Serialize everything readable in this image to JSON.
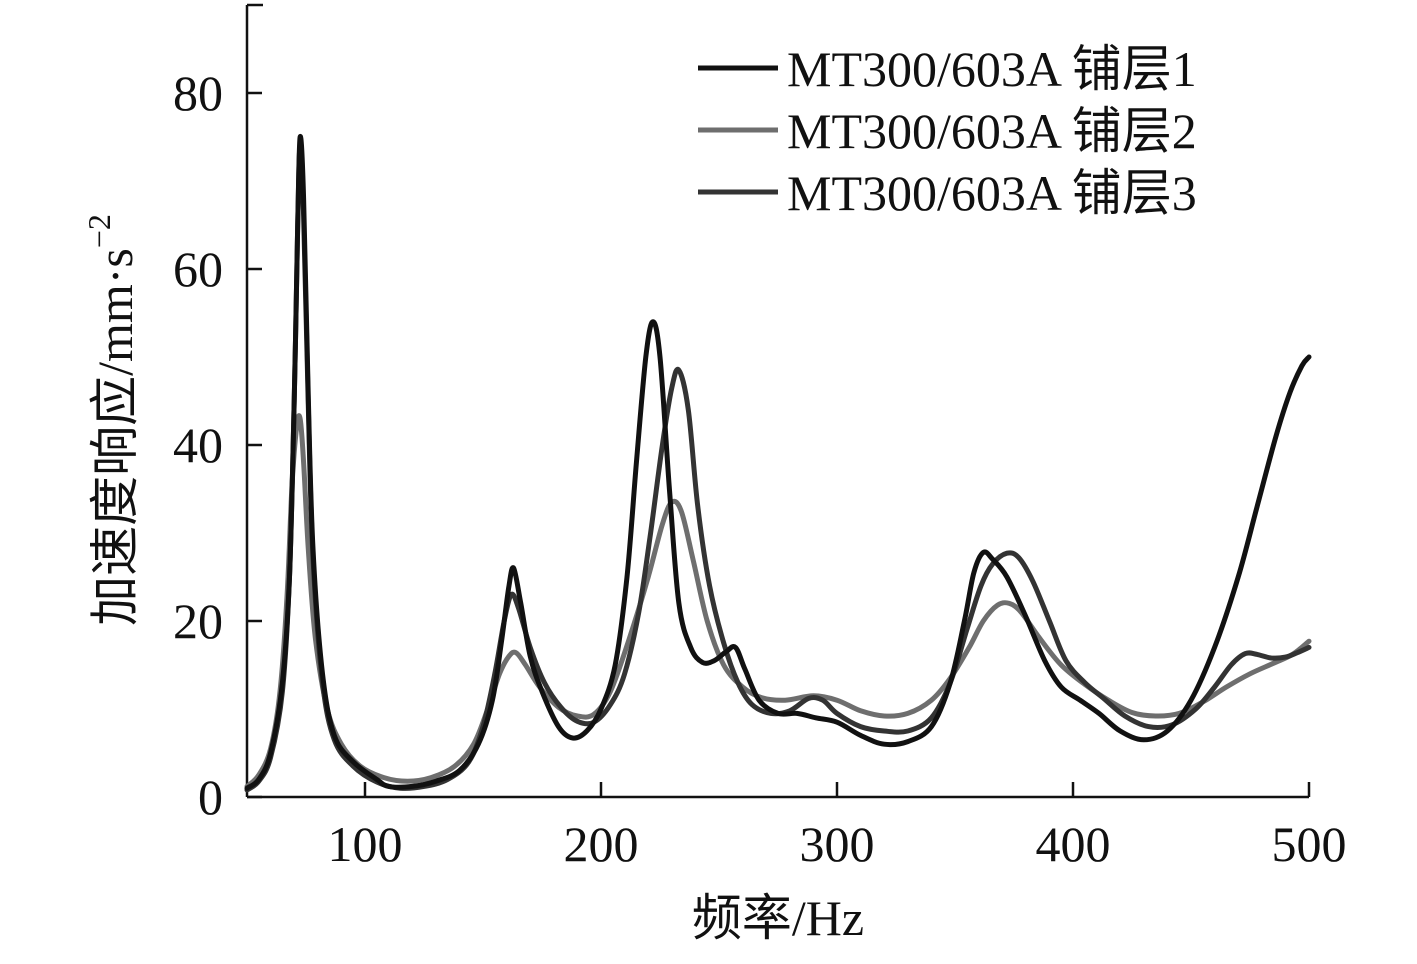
{
  "chart_data": {
    "type": "line",
    "title": "",
    "xlabel": "频率/Hz",
    "ylabel": "加速度响应/mm·s",
    "ylabel_superscript": "−2",
    "xlim": [
      50,
      500
    ],
    "ylim": [
      0,
      90
    ],
    "xticks": [
      100,
      200,
      300,
      400,
      500
    ],
    "yticks": [
      0,
      20,
      40,
      60,
      80
    ],
    "xtick_labels": [
      "100",
      "200",
      "300",
      "400",
      "500"
    ],
    "ytick_labels": [
      "0",
      "20",
      "40",
      "60",
      "80"
    ],
    "grid": false,
    "legend_position": "top-right",
    "series": [
      {
        "name": "MT300/603A 铺层1",
        "color": "#111111",
        "points": [
          [
            50,
            1
          ],
          [
            55,
            2
          ],
          [
            60,
            5
          ],
          [
            65,
            13
          ],
          [
            68,
            25
          ],
          [
            70,
            45
          ],
          [
            71.5,
            65
          ],
          [
            72.5,
            75
          ],
          [
            74,
            68
          ],
          [
            76,
            45
          ],
          [
            78,
            28
          ],
          [
            82,
            14
          ],
          [
            87,
            7
          ],
          [
            95,
            4
          ],
          [
            105,
            2
          ],
          [
            110,
            1.2
          ],
          [
            120,
            1.2
          ],
          [
            130,
            1.8
          ],
          [
            140,
            3
          ],
          [
            148,
            6
          ],
          [
            154,
            11
          ],
          [
            158,
            18
          ],
          [
            161,
            24
          ],
          [
            163,
            26
          ],
          [
            166,
            22
          ],
          [
            170,
            16
          ],
          [
            175,
            12
          ],
          [
            182,
            8
          ],
          [
            188,
            6.7
          ],
          [
            194,
            7.5
          ],
          [
            200,
            10
          ],
          [
            206,
            15
          ],
          [
            211,
            25
          ],
          [
            215,
            38
          ],
          [
            219,
            50
          ],
          [
            222,
            54
          ],
          [
            225,
            50
          ],
          [
            229,
            35
          ],
          [
            233,
            22
          ],
          [
            238,
            17
          ],
          [
            243,
            15.3
          ],
          [
            248,
            15.5
          ],
          [
            253,
            16.5
          ],
          [
            257,
            17
          ],
          [
            261,
            14.5
          ],
          [
            267,
            11
          ],
          [
            275,
            9.5
          ],
          [
            283,
            9.5
          ],
          [
            291,
            9
          ],
          [
            300,
            8.5
          ],
          [
            310,
            7
          ],
          [
            320,
            6
          ],
          [
            330,
            6.3
          ],
          [
            340,
            8
          ],
          [
            348,
            13
          ],
          [
            354,
            20
          ],
          [
            358,
            25.5
          ],
          [
            362,
            27.8
          ],
          [
            366,
            27
          ],
          [
            372,
            25
          ],
          [
            380,
            20.5
          ],
          [
            388,
            15.5
          ],
          [
            395,
            12.5
          ],
          [
            403,
            11
          ],
          [
            411,
            9.5
          ],
          [
            420,
            7.5
          ],
          [
            430,
            6.5
          ],
          [
            440,
            7.5
          ],
          [
            450,
            11
          ],
          [
            460,
            17
          ],
          [
            470,
            25
          ],
          [
            478,
            33
          ],
          [
            486,
            41
          ],
          [
            492,
            46
          ],
          [
            497,
            49
          ],
          [
            500,
            50
          ]
        ]
      },
      {
        "name": "MT300/603A 铺层2",
        "color": "#6e6e6e",
        "points": [
          [
            50,
            1.2
          ],
          [
            55,
            2.5
          ],
          [
            60,
            5.5
          ],
          [
            64,
            12
          ],
          [
            67,
            23
          ],
          [
            69,
            35
          ],
          [
            71,
            42
          ],
          [
            72.5,
            43
          ],
          [
            74,
            38
          ],
          [
            76,
            28
          ],
          [
            79,
            18
          ],
          [
            84,
            10
          ],
          [
            90,
            6
          ],
          [
            98,
            3.5
          ],
          [
            108,
            2.2
          ],
          [
            118,
            1.8
          ],
          [
            128,
            2.2
          ],
          [
            138,
            3.5
          ],
          [
            146,
            6
          ],
          [
            152,
            10
          ],
          [
            157,
            14
          ],
          [
            161,
            16
          ],
          [
            164,
            16.4
          ],
          [
            168,
            15
          ],
          [
            174,
            12.5
          ],
          [
            182,
            10.2
          ],
          [
            190,
            9.2
          ],
          [
            197,
            9.4
          ],
          [
            204,
            12
          ],
          [
            212,
            18
          ],
          [
            220,
            25
          ],
          [
            226,
            31
          ],
          [
            230,
            33.5
          ],
          [
            234,
            32.5
          ],
          [
            239,
            27
          ],
          [
            245,
            20
          ],
          [
            252,
            15
          ],
          [
            260,
            12.5
          ],
          [
            268,
            11.3
          ],
          [
            278,
            11
          ],
          [
            290,
            11.5
          ],
          [
            300,
            11
          ],
          [
            310,
            9.8
          ],
          [
            320,
            9.2
          ],
          [
            330,
            9.5
          ],
          [
            340,
            11
          ],
          [
            348,
            13.5
          ],
          [
            356,
            17
          ],
          [
            362,
            20
          ],
          [
            368,
            21.8
          ],
          [
            373,
            22
          ],
          [
            378,
            21
          ],
          [
            386,
            18
          ],
          [
            395,
            15
          ],
          [
            405,
            12.8
          ],
          [
            415,
            11
          ],
          [
            425,
            9.6
          ],
          [
            435,
            9.2
          ],
          [
            445,
            9.5
          ],
          [
            455,
            10.8
          ],
          [
            465,
            12.5
          ],
          [
            475,
            14
          ],
          [
            485,
            15.2
          ],
          [
            493,
            16.2
          ],
          [
            500,
            17.7
          ]
        ]
      },
      {
        "name": "MT300/603A 铺层3",
        "color": "#333333",
        "points": [
          [
            50,
            0.8
          ],
          [
            55,
            1.8
          ],
          [
            60,
            4.5
          ],
          [
            65,
            12
          ],
          [
            68,
            25
          ],
          [
            70,
            45
          ],
          [
            71.5,
            65
          ],
          [
            72.5,
            74
          ],
          [
            74,
            66
          ],
          [
            76,
            44
          ],
          [
            78,
            27
          ],
          [
            82,
            13
          ],
          [
            87,
            6.5
          ],
          [
            95,
            3.5
          ],
          [
            105,
            1.7
          ],
          [
            115,
            1
          ],
          [
            125,
            1.2
          ],
          [
            135,
            2
          ],
          [
            144,
            4
          ],
          [
            150,
            8
          ],
          [
            155,
            14
          ],
          [
            159,
            20
          ],
          [
            162,
            23
          ],
          [
            165,
            21.5
          ],
          [
            170,
            17
          ],
          [
            176,
            13
          ],
          [
            183,
            10.2
          ],
          [
            190,
            8.6
          ],
          [
            197,
            8.5
          ],
          [
            204,
            10.5
          ],
          [
            210,
            14
          ],
          [
            216,
            21
          ],
          [
            221,
            30
          ],
          [
            226,
            40
          ],
          [
            230,
            46.5
          ],
          [
            233,
            48.5
          ],
          [
            237,
            44
          ],
          [
            241,
            33
          ],
          [
            246,
            24
          ],
          [
            252,
            17.5
          ],
          [
            258,
            13
          ],
          [
            264,
            10.5
          ],
          [
            272,
            9.5
          ],
          [
            280,
            9.8
          ],
          [
            288,
            11.2
          ],
          [
            294,
            11
          ],
          [
            300,
            9.5
          ],
          [
            310,
            8
          ],
          [
            320,
            7.5
          ],
          [
            330,
            7.5
          ],
          [
            340,
            9
          ],
          [
            348,
            13
          ],
          [
            355,
            19
          ],
          [
            361,
            24
          ],
          [
            366,
            26.5
          ],
          [
            372,
            27.7
          ],
          [
            377,
            27.2
          ],
          [
            383,
            24.5
          ],
          [
            390,
            20
          ],
          [
            397,
            15.5
          ],
          [
            405,
            13
          ],
          [
            413,
            11.2
          ],
          [
            422,
            9.2
          ],
          [
            432,
            8
          ],
          [
            442,
            8.2
          ],
          [
            452,
            10
          ],
          [
            460,
            12.5
          ],
          [
            467,
            15
          ],
          [
            473,
            16.3
          ],
          [
            478,
            16.2
          ],
          [
            484,
            15.8
          ],
          [
            490,
            15.9
          ],
          [
            495,
            16.4
          ],
          [
            500,
            17
          ]
        ]
      }
    ]
  }
}
